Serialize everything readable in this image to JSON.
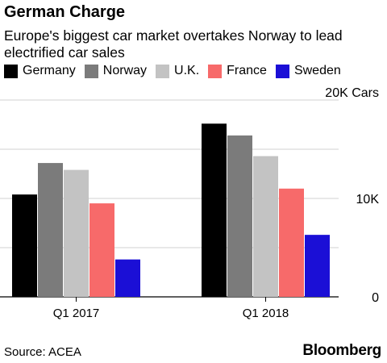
{
  "title": "German Charge",
  "subtitle": "Europe's biggest car market overtakes Norway to lead electrified car sales",
  "source": "Source: ACEA",
  "brand": "Bloomberg",
  "colors": {
    "Germany": "#000000",
    "Norway": "#7b7b7b",
    "U.K.": "#c3c3c3",
    "France": "#f76a6a",
    "Sweden": "#1b0fd6"
  },
  "chart_data": {
    "type": "bar",
    "title": "German Charge",
    "subtitle": "Europe's biggest car market overtakes Norway to lead electrified car sales",
    "categories": [
      "Q1 2017",
      "Q1 2018"
    ],
    "series": [
      {
        "name": "Germany",
        "values": [
          10400,
          17600
        ]
      },
      {
        "name": "Norway",
        "values": [
          13600,
          16400
        ]
      },
      {
        "name": "U.K.",
        "values": [
          12900,
          14300
        ]
      },
      {
        "name": "France",
        "values": [
          9500,
          11000
        ]
      },
      {
        "name": "Sweden",
        "values": [
          3800,
          6300
        ]
      }
    ],
    "yticks": [
      {
        "value": 0,
        "label": "0"
      },
      {
        "value": 10000,
        "label": "10K"
      },
      {
        "value": 20000,
        "label": "20K Cars"
      }
    ],
    "ylim": [
      0,
      20000
    ],
    "grid": true,
    "legend_position": "top"
  }
}
